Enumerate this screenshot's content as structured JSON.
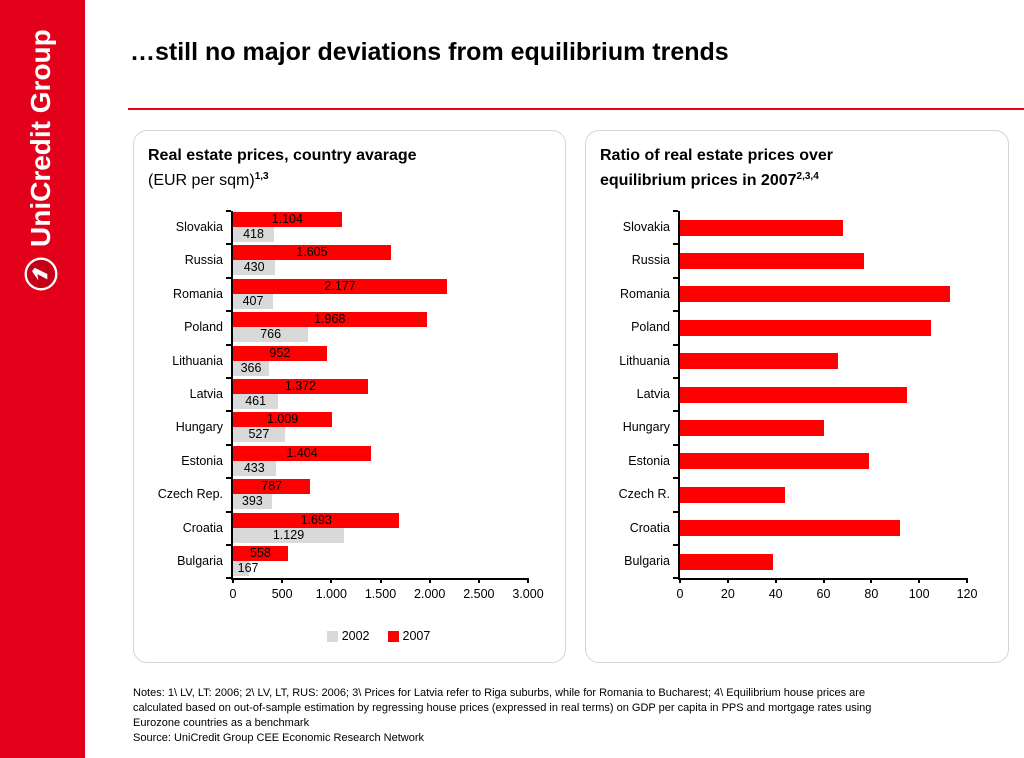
{
  "sidebar": {
    "brand": "UniCredit Group",
    "bg_color": "#E2001A"
  },
  "header": {
    "title": "…still no major deviations from equilibrium trends",
    "rule_color": "#E30613"
  },
  "left_panel": {
    "title_bold": "Real estate prices, country avarage",
    "title_regular": "(EUR per sqm)",
    "title_superscript": "1,3"
  },
  "right_panel": {
    "title_bold": "Ratio of real estate prices over equilibrium prices in 2007",
    "title_superscript": "2,3,4"
  },
  "chart_data": [
    {
      "type": "bar",
      "orientation": "horizontal",
      "title": "Real estate prices, country avarage (EUR per sqm)",
      "categories": [
        "Slovakia",
        "Russia",
        "Romania",
        "Poland",
        "Lithuania",
        "Latvia",
        "Hungary",
        "Estonia",
        "Czech Rep.",
        "Croatia",
        "Bulgaria"
      ],
      "series": [
        {
          "name": "2002",
          "color": "#D9D9D9",
          "values": [
            418,
            430,
            407,
            766,
            366,
            461,
            527,
            433,
            393,
            1129,
            167
          ],
          "labels": [
            "418",
            "430",
            "407",
            "766",
            "366",
            "461",
            "527",
            "433",
            "393",
            "1.129",
            "167"
          ]
        },
        {
          "name": "2007",
          "color": "#FF0000",
          "values": [
            1104,
            1605,
            2177,
            1968,
            952,
            1372,
            1009,
            1404,
            787,
            1693,
            558
          ],
          "labels": [
            "1.104",
            "1.605",
            "2.177",
            "1.968",
            "952",
            "1.372",
            "1.009",
            "1.404",
            "787",
            "1.693",
            "558"
          ]
        }
      ],
      "xlim": [
        0,
        3000
      ],
      "x_ticks": [
        "0",
        "500",
        "1.000",
        "1.500",
        "2.000",
        "2.500",
        "3.000"
      ],
      "legend": [
        "2002",
        "2007"
      ],
      "legend_position": "bottom"
    },
    {
      "type": "bar",
      "orientation": "horizontal",
      "title": "Ratio of real estate prices over equilibrium prices in 2007",
      "categories": [
        "Slovakia",
        "Russia",
        "Romania",
        "Poland",
        "Lithuania",
        "Latvia",
        "Hungary",
        "Estonia",
        "Czech R.",
        "Croatia",
        "Bulgaria"
      ],
      "values": [
        68,
        77,
        113,
        105,
        66,
        95,
        60,
        79,
        44,
        92,
        39
      ],
      "bar_color": "#FF0000",
      "xlim": [
        0,
        120
      ],
      "x_ticks": [
        "0",
        "20",
        "40",
        "60",
        "80",
        "100",
        "120"
      ]
    }
  ],
  "footer": {
    "notes": "Notes: 1\\ LV, LT: 2006; 2\\ LV, LT, RUS: 2006; 3\\ Prices for Latvia refer to Riga suburbs, while for Romania to Bucharest; 4\\ Equilibrium house prices are calculated based on out-of-sample estimation by regressing house prices (expressed in real terms) on GDP per capita in PPS and mortgage rates using Eurozone countries as a benchmark",
    "source": "Source: UniCredit Group CEE Economic Research Network"
  }
}
